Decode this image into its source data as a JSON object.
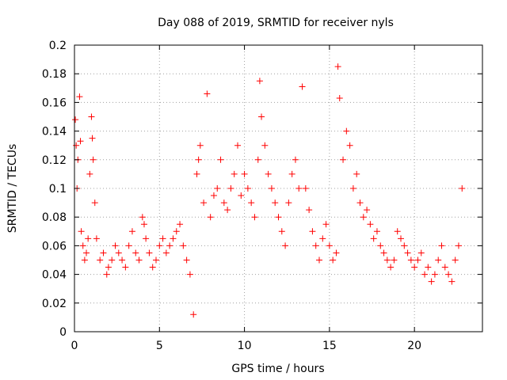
{
  "chart_data": {
    "type": "scatter",
    "title": "Day 088 of 2019, SRMTID for receiver nyls",
    "xlabel": "GPS time / hours",
    "ylabel": "SRMTID / TECUs",
    "xlim": [
      0,
      24
    ],
    "ylim": [
      0,
      0.2
    ],
    "xticks": [
      0,
      5,
      10,
      15,
      20
    ],
    "xtick_labels": [
      "0",
      "5",
      "10",
      "15",
      "20"
    ],
    "yticks": [
      0,
      0.02,
      0.04,
      0.06,
      0.08,
      0.1,
      0.12,
      0.14,
      0.16,
      0.18,
      0.2
    ],
    "ytick_labels": [
      "0",
      "0.02",
      "0.04",
      "0.06",
      "0.08",
      "0.1",
      "0.12",
      "0.14",
      "0.16",
      "0.18",
      "0.2"
    ],
    "grid": true,
    "marker": "plus",
    "color": "#ff0000",
    "series": [
      {
        "x": [
          0.05,
          0.1,
          0.15,
          0.2,
          0.3,
          0.35,
          0.4,
          0.5,
          0.6,
          0.7,
          0.8,
          0.9,
          1.0,
          1.05,
          1.1,
          1.2,
          1.3,
          1.5,
          1.7,
          1.9,
          2.0,
          2.2,
          2.4,
          2.6,
          2.8,
          3.0,
          3.2,
          3.4,
          3.6,
          3.8,
          4.0,
          4.1,
          4.2,
          4.4,
          4.6,
          4.8,
          5.0,
          5.2,
          5.4,
          5.6,
          5.8,
          6.0,
          6.2,
          6.4,
          6.6,
          6.8,
          7.0,
          7.2,
          7.3,
          7.4,
          7.6,
          7.8,
          8.0,
          8.2,
          8.4,
          8.6,
          8.8,
          9.0,
          9.2,
          9.4,
          9.6,
          9.8,
          10.0,
          10.2,
          10.4,
          10.6,
          10.8,
          10.9,
          11.0,
          11.2,
          11.4,
          11.6,
          11.8,
          12.0,
          12.2,
          12.4,
          12.6,
          12.8,
          13.0,
          13.2,
          13.4,
          13.6,
          13.8,
          14.0,
          14.2,
          14.4,
          14.6,
          14.8,
          15.0,
          15.2,
          15.4,
          15.5,
          15.6,
          15.8,
          16.0,
          16.2,
          16.4,
          16.6,
          16.8,
          17.0,
          17.2,
          17.4,
          17.6,
          17.8,
          18.0,
          18.2,
          18.4,
          18.6,
          18.8,
          19.0,
          19.2,
          19.4,
          19.6,
          19.8,
          20.0,
          20.2,
          20.4,
          20.6,
          20.8,
          21.0,
          21.2,
          21.4,
          21.6,
          21.8,
          22.0,
          22.2,
          22.4,
          22.6,
          22.8
        ],
        "y": [
          0.148,
          0.13,
          0.1,
          0.12,
          0.164,
          0.133,
          0.07,
          0.06,
          0.05,
          0.055,
          0.065,
          0.11,
          0.15,
          0.135,
          0.12,
          0.09,
          0.065,
          0.05,
          0.055,
          0.04,
          0.045,
          0.05,
          0.06,
          0.055,
          0.05,
          0.045,
          0.06,
          0.07,
          0.055,
          0.05,
          0.08,
          0.075,
          0.065,
          0.055,
          0.045,
          0.05,
          0.06,
          0.065,
          0.055,
          0.06,
          0.065,
          0.07,
          0.075,
          0.06,
          0.05,
          0.04,
          0.012,
          0.11,
          0.12,
          0.13,
          0.09,
          0.166,
          0.08,
          0.095,
          0.1,
          0.12,
          0.09,
          0.085,
          0.1,
          0.11,
          0.13,
          0.095,
          0.11,
          0.1,
          0.09,
          0.08,
          0.12,
          0.175,
          0.15,
          0.13,
          0.11,
          0.1,
          0.09,
          0.08,
          0.07,
          0.06,
          0.09,
          0.11,
          0.12,
          0.1,
          0.171,
          0.1,
          0.085,
          0.07,
          0.06,
          0.05,
          0.065,
          0.075,
          0.06,
          0.05,
          0.055,
          0.185,
          0.163,
          0.12,
          0.14,
          0.13,
          0.1,
          0.11,
          0.09,
          0.08,
          0.085,
          0.075,
          0.065,
          0.07,
          0.06,
          0.055,
          0.05,
          0.045,
          0.05,
          0.07,
          0.065,
          0.06,
          0.055,
          0.05,
          0.045,
          0.05,
          0.055,
          0.04,
          0.045,
          0.035,
          0.04,
          0.05,
          0.06,
          0.045,
          0.04,
          0.035,
          0.05,
          0.06,
          0.1
        ]
      }
    ]
  }
}
